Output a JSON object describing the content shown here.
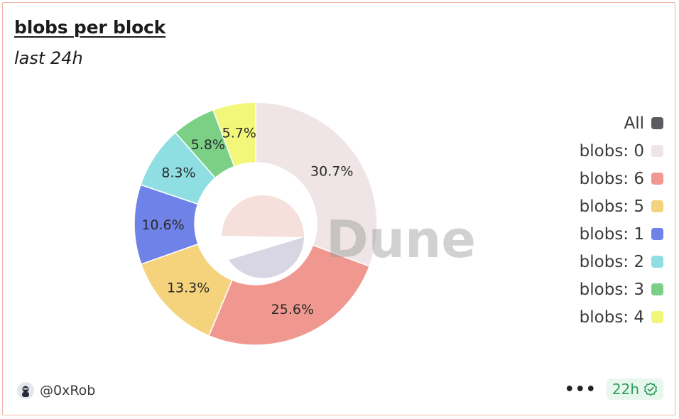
{
  "header": {
    "title": "blobs per block",
    "subtitle": "last 24h"
  },
  "watermark": "Dune",
  "legend": {
    "all_label": "All",
    "all_color": "#5a5c60"
  },
  "footer": {
    "author": "@0xRob",
    "more_label": "•••",
    "age_badge": "22h"
  },
  "chart_data": {
    "type": "pie",
    "variant": "donut",
    "title": "blobs per block",
    "subtitle": "last 24h",
    "slices": [
      {
        "label": "blobs: 0",
        "value": 30.7,
        "display": "30.7%",
        "color": "#efe5e6"
      },
      {
        "label": "blobs: 6",
        "value": 25.6,
        "display": "25.6%",
        "color": "#f09890"
      },
      {
        "label": "blobs: 5",
        "value": 13.3,
        "display": "13.3%",
        "color": "#f4d37c"
      },
      {
        "label": "blobs: 1",
        "value": 10.6,
        "display": "10.6%",
        "color": "#6f82e8"
      },
      {
        "label": "blobs: 2",
        "value": 8.3,
        "display": "8.3%",
        "color": "#8fdfe2"
      },
      {
        "label": "blobs: 3",
        "value": 5.8,
        "display": "5.8%",
        "color": "#7bd086"
      },
      {
        "label": "blobs: 4",
        "value": 5.7,
        "display": "5.7%",
        "color": "#f2f77a"
      }
    ],
    "legend_position": "right"
  }
}
